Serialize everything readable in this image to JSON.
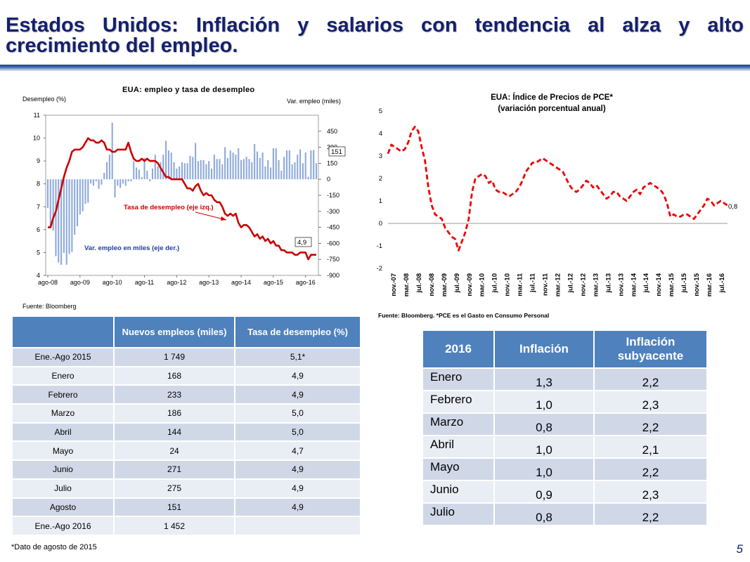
{
  "slide": {
    "title": "Estados Unidos: Inflación y salarios con tendencia al alza y alto crecimiento del empleo.",
    "footnote": "*Dato de agosto de 2015",
    "page_number": "5",
    "colors": {
      "title": "#14206e",
      "table_header": "#4f81bd",
      "row_dark": "#d0d8e8",
      "row_light": "#e9edf4",
      "series_red": "#cc0000",
      "bars_blue": "#8ea9db"
    }
  },
  "chart_data": [
    {
      "type": "bar+line",
      "title": "EUA:  empleo y tasa de desempleo",
      "ylabel_left": "Desempleo (%)",
      "ylabel_right": "Var. empleo (miles)",
      "source": "Fuente: Bloomberg",
      "x_tick_labels": [
        "ago-08",
        "ago-09",
        "ago-10",
        "ago-11",
        "ago-12",
        "ago-13",
        "ago-14",
        "ago-15",
        "ago-16"
      ],
      "left_ticks": [
        "4",
        "5",
        "6",
        "7",
        "8",
        "9",
        "10",
        "11"
      ],
      "right_ticks": [
        "450",
        "300",
        "150",
        "0",
        "-150",
        "-300",
        "-450",
        "-600",
        "-750",
        "-900"
      ],
      "ylim_left": [
        4,
        11
      ],
      "ylim_right": [
        -900,
        600
      ],
      "annotations": {
        "unemployment_series": "Tasa de desempleo (eje izq.)",
        "employment_series": "Var. empleo en miles (eje der.)",
        "last_unemployment": "4,9",
        "last_employment": "151"
      },
      "unemployment": [
        6.1,
        6.1,
        6.5,
        6.8,
        7.3,
        7.8,
        8.3,
        8.7,
        9.0,
        9.4,
        9.5,
        9.5,
        9.5,
        9.6,
        9.8,
        10.0,
        9.9,
        9.9,
        9.8,
        9.8,
        9.9,
        9.8,
        9.5,
        9.5,
        9.4,
        9.4,
        9.5,
        9.5,
        9.5,
        9.5,
        9.8,
        9.4,
        9.1,
        9.0,
        9.0,
        9.1,
        9.0,
        9.1,
        9.0,
        9.0,
        9.0,
        8.9,
        8.7,
        8.5,
        8.3,
        8.3,
        8.2,
        8.2,
        8.2,
        8.2,
        8.2,
        8.0,
        7.8,
        7.8,
        7.7,
        7.9,
        8.0,
        7.7,
        7.5,
        7.6,
        7.5,
        7.5,
        7.3,
        7.2,
        7.2,
        7.0,
        6.7,
        6.6,
        6.7,
        6.6,
        6.7,
        6.3,
        6.1,
        6.2,
        6.2,
        6.1,
        5.9,
        5.7,
        5.8,
        5.6,
        5.7,
        5.5,
        5.6,
        5.4,
        5.5,
        5.3,
        5.3,
        5.1,
        5.1,
        5.0,
        5.0,
        5.0,
        4.9,
        4.9,
        5.0,
        5.0,
        5.0,
        4.7,
        4.9,
        4.9,
        4.9
      ],
      "employment_change": [
        -270,
        -450,
        -480,
        -720,
        -780,
        -800,
        -690,
        -800,
        -700,
        -680,
        -520,
        -440,
        -330,
        -300,
        -230,
        -220,
        -40,
        -60,
        -20,
        -90,
        -50,
        60,
        160,
        230,
        530,
        -170,
        -60,
        -80,
        -40,
        -60,
        -20,
        -20,
        170,
        110,
        90,
        20,
        200,
        80,
        -20,
        100,
        230,
        120,
        160,
        230,
        360,
        270,
        250,
        160,
        100,
        120,
        160,
        150,
        150,
        220,
        210,
        340,
        170,
        180,
        180,
        140,
        170,
        100,
        230,
        190,
        190,
        140,
        300,
        200,
        270,
        250,
        230,
        290,
        180,
        190,
        210,
        190,
        160,
        330,
        260,
        200,
        250,
        120,
        180,
        110,
        290,
        290,
        180,
        80,
        210,
        270,
        270,
        140,
        160,
        230,
        280,
        150,
        250,
        24,
        271,
        275,
        151
      ],
      "employment_ticks_note": "monthly bars ago-08 to ago-16"
    },
    {
      "type": "line",
      "title": "EUA: Índice de Precios de PCE*",
      "subtitle": "(variación porcentual anual)",
      "source": "Fuente: Bloomberg. *PCE es el Gasto en Consumo Personal",
      "ylim": [
        -2,
        5
      ],
      "y_ticks": [
        "5",
        "4",
        "3",
        "2",
        "1",
        "0",
        "-1",
        "-2"
      ],
      "x_tick_labels": [
        "nov.-07",
        "mar.-08",
        "jul.-08",
        "nov.-08",
        "mar.-09",
        "jul.-09",
        "nov.-09",
        "mar.-10",
        "jul.-10",
        "nov.-10",
        "mar.-11",
        "jul.-11",
        "nov.-11",
        "mar.-12",
        "jul.-12",
        "nov.-12",
        "mar.-13",
        "jul.-13",
        "nov.-13",
        "mar.-14",
        "jul.-14",
        "nov.-14",
        "mar.-15",
        "jul.-15",
        "nov.-15",
        "mar.-16",
        "jul.-16"
      ],
      "last_value_label": "0,8",
      "values": [
        3.1,
        3.5,
        3.4,
        3.3,
        3.2,
        3.3,
        3.6,
        4.1,
        4.3,
        4.1,
        3.4,
        2.8,
        1.6,
        0.8,
        0.4,
        0.3,
        0.2,
        -0.2,
        -0.4,
        -0.6,
        -0.7,
        -1.2,
        -0.8,
        -0.4,
        0.2,
        1.4,
        2.0,
        2.1,
        2.2,
        2.1,
        1.8,
        1.9,
        1.5,
        1.4,
        1.4,
        1.3,
        1.2,
        1.3,
        1.4,
        1.6,
        1.9,
        2.3,
        2.5,
        2.7,
        2.7,
        2.8,
        2.9,
        2.8,
        2.7,
        2.6,
        2.5,
        2.4,
        2.3,
        2.0,
        1.7,
        1.5,
        1.4,
        1.5,
        1.7,
        1.9,
        1.8,
        1.6,
        1.7,
        1.5,
        1.3,
        1.1,
        1.2,
        1.4,
        1.4,
        1.2,
        1.1,
        1.0,
        1.2,
        1.4,
        1.5,
        1.3,
        1.6,
        1.7,
        1.8,
        1.7,
        1.6,
        1.5,
        1.3,
        0.9,
        0.3,
        0.4,
        0.3,
        0.3,
        0.4,
        0.4,
        0.3,
        0.2,
        0.4,
        0.6,
        0.8,
        1.1,
        1.0,
        0.8,
        0.9,
        1.0,
        0.9,
        0.8
      ]
    }
  ],
  "employment_table": {
    "headers": [
      "",
      "Nuevos empleos (miles)",
      "Tasa de desempleo (%)"
    ],
    "rows": [
      [
        "Ene.-Ago 2015",
        "1 749",
        "5,1*"
      ],
      [
        "Enero",
        "168",
        "4,9"
      ],
      [
        "Febrero",
        "233",
        "4,9"
      ],
      [
        "Marzo",
        "186",
        "5,0"
      ],
      [
        "Abril",
        "144",
        "5,0"
      ],
      [
        "Mayo",
        "24",
        "4,7"
      ],
      [
        "Junio",
        "271",
        "4,9"
      ],
      [
        "Julio",
        "275",
        "4,9"
      ],
      [
        "Agosto",
        "151",
        "4,9"
      ],
      [
        "Ene.-Ago 2016",
        "1 452",
        ""
      ]
    ]
  },
  "inflation_table": {
    "headers": [
      "2016",
      "Inflación",
      "Inflación subyacente"
    ],
    "rows": [
      [
        "Enero",
        "1,3",
        "2,2"
      ],
      [
        "Febrero",
        "1,0",
        "2,3"
      ],
      [
        "Marzo",
        "0,8",
        "2,2"
      ],
      [
        "Abril",
        "1,0",
        "2,1"
      ],
      [
        "Mayo",
        "1,0",
        "2,2"
      ],
      [
        "Junio",
        "0,9",
        "2,3"
      ],
      [
        "Julio",
        "0,8",
        "2,2"
      ]
    ]
  }
}
